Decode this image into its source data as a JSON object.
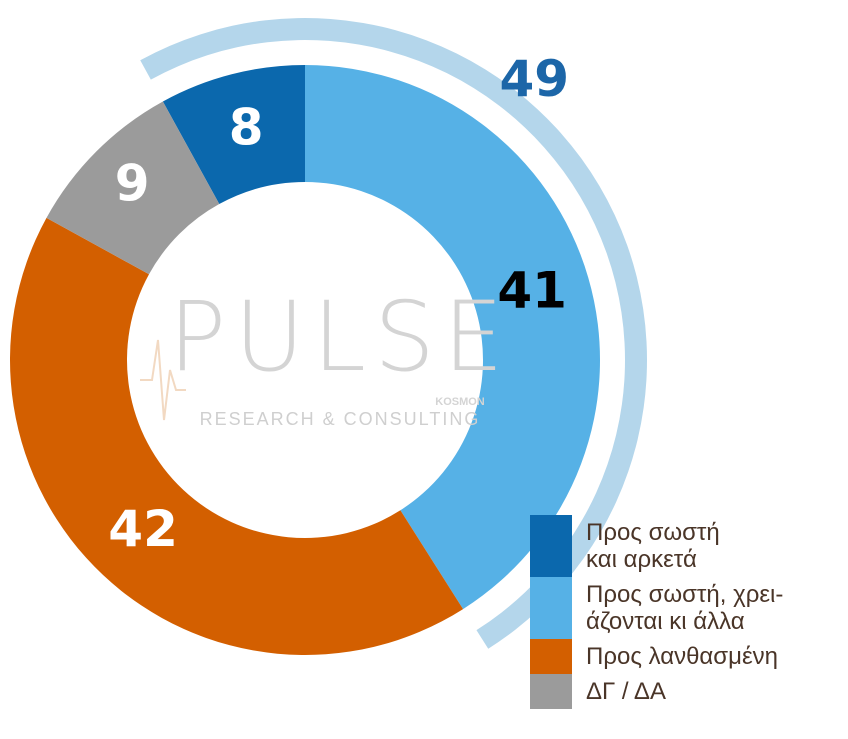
{
  "chart_data": {
    "type": "donut",
    "categories": [
      "Προς σωστή και αρκετά",
      "Προς σωστή, χρει-\nάζονται κι άλλα",
      "Προς λανθασμένη",
      "ΔΓ / ΔΑ"
    ],
    "values": [
      8,
      41,
      42,
      9
    ],
    "colors": [
      "#0b68ad",
      "#56b1e6",
      "#d35f00",
      "#9b9b9b"
    ],
    "outer_arc": {
      "value": 49,
      "color": "#b4d6eb",
      "label_color": "#1c66a8"
    },
    "watermark": {
      "title": "PULSE",
      "subtitle": "RESEARCH & CONSULTING",
      "tag": "KOSMON"
    }
  }
}
